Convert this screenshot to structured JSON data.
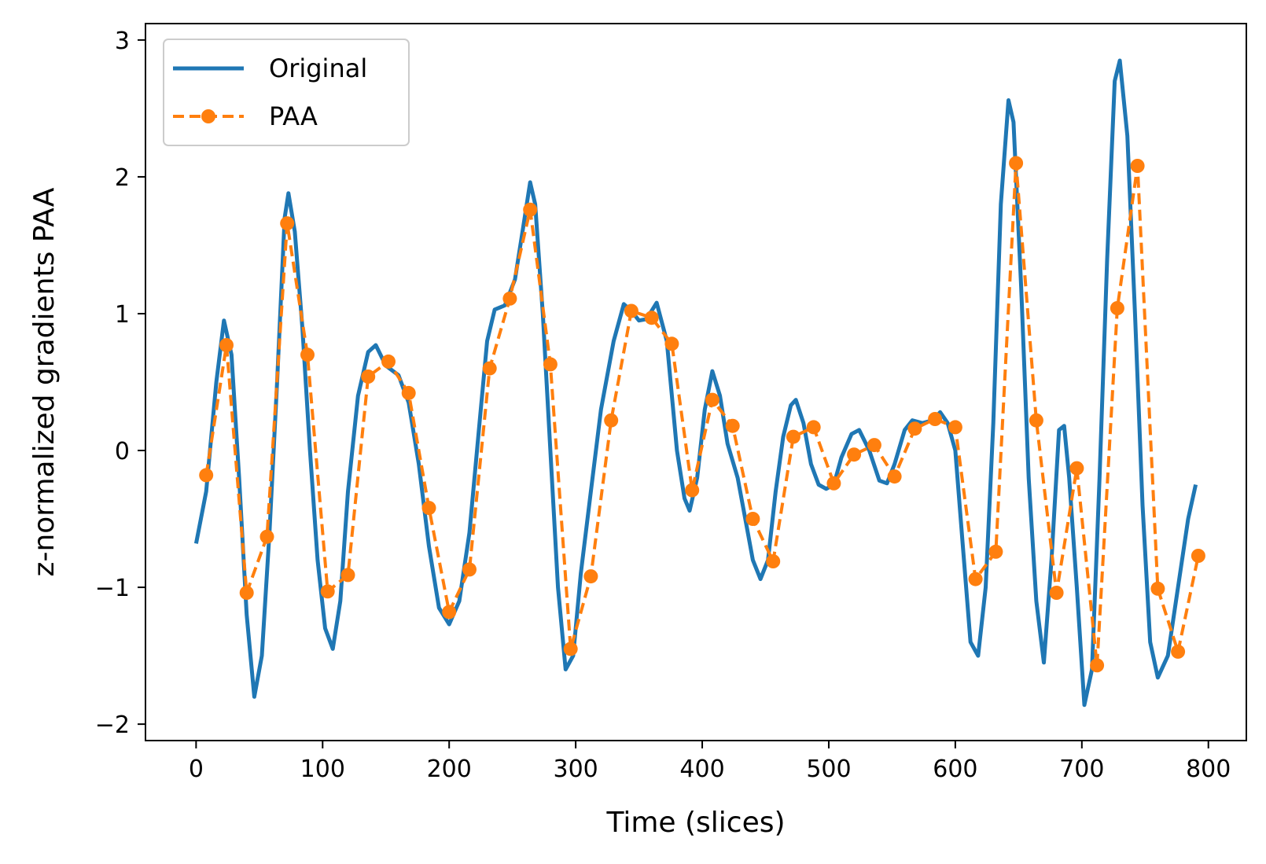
{
  "chart_data": {
    "type": "line",
    "title": "",
    "xlabel": "Time (slices)",
    "ylabel": "z-normalized gradients PAA",
    "xlim": [
      -40,
      830
    ],
    "ylim": [
      -2.12,
      3.12
    ],
    "x_ticks": [
      0,
      100,
      200,
      300,
      400,
      500,
      600,
      700,
      800
    ],
    "y_ticks": [
      3,
      2,
      1,
      0,
      -1,
      -2
    ],
    "y_tick_labels": [
      "3",
      "2",
      "1",
      "0",
      "−1",
      "−2"
    ],
    "grid": false,
    "legend_position": "top-left",
    "series": [
      {
        "name": "Original",
        "style": "solid",
        "color": "#1f77b4",
        "points": [
          [
            0,
            -0.68
          ],
          [
            8,
            -0.3
          ],
          [
            16,
            0.5
          ],
          [
            22,
            0.95
          ],
          [
            28,
            0.7
          ],
          [
            34,
            -0.2
          ],
          [
            40,
            -1.2
          ],
          [
            46,
            -1.8
          ],
          [
            52,
            -1.5
          ],
          [
            58,
            -0.6
          ],
          [
            64,
            0.5
          ],
          [
            70,
            1.7
          ],
          [
            73,
            1.88
          ],
          [
            78,
            1.6
          ],
          [
            84,
            0.9
          ],
          [
            90,
            0.0
          ],
          [
            96,
            -0.8
          ],
          [
            102,
            -1.3
          ],
          [
            108,
            -1.45
          ],
          [
            114,
            -1.1
          ],
          [
            120,
            -0.3
          ],
          [
            128,
            0.4
          ],
          [
            136,
            0.72
          ],
          [
            142,
            0.77
          ],
          [
            150,
            0.62
          ],
          [
            160,
            0.55
          ],
          [
            168,
            0.35
          ],
          [
            176,
            -0.1
          ],
          [
            184,
            -0.7
          ],
          [
            192,
            -1.15
          ],
          [
            200,
            -1.27
          ],
          [
            208,
            -1.1
          ],
          [
            216,
            -0.6
          ],
          [
            224,
            0.2
          ],
          [
            230,
            0.8
          ],
          [
            236,
            1.03
          ],
          [
            244,
            1.06
          ],
          [
            252,
            1.25
          ],
          [
            258,
            1.6
          ],
          [
            264,
            1.96
          ],
          [
            268,
            1.8
          ],
          [
            274,
            1.0
          ],
          [
            280,
            0.0
          ],
          [
            286,
            -1.0
          ],
          [
            292,
            -1.6
          ],
          [
            298,
            -1.5
          ],
          [
            304,
            -0.9
          ],
          [
            312,
            -0.3
          ],
          [
            320,
            0.3
          ],
          [
            330,
            0.8
          ],
          [
            338,
            1.07
          ],
          [
            344,
            1.02
          ],
          [
            350,
            0.95
          ],
          [
            356,
            0.96
          ],
          [
            364,
            1.08
          ],
          [
            372,
            0.8
          ],
          [
            380,
            0.0
          ],
          [
            386,
            -0.35
          ],
          [
            390,
            -0.44
          ],
          [
            396,
            -0.2
          ],
          [
            402,
            0.3
          ],
          [
            408,
            0.58
          ],
          [
            414,
            0.4
          ],
          [
            420,
            0.05
          ],
          [
            428,
            -0.2
          ],
          [
            434,
            -0.5
          ],
          [
            440,
            -0.8
          ],
          [
            446,
            -0.94
          ],
          [
            452,
            -0.8
          ],
          [
            458,
            -0.3
          ],
          [
            464,
            0.1
          ],
          [
            470,
            0.33
          ],
          [
            474,
            0.37
          ],
          [
            480,
            0.2
          ],
          [
            486,
            -0.1
          ],
          [
            492,
            -0.25
          ],
          [
            498,
            -0.28
          ],
          [
            504,
            -0.25
          ],
          [
            510,
            -0.05
          ],
          [
            518,
            0.12
          ],
          [
            524,
            0.15
          ],
          [
            532,
            0.0
          ],
          [
            540,
            -0.22
          ],
          [
            546,
            -0.24
          ],
          [
            552,
            -0.1
          ],
          [
            560,
            0.15
          ],
          [
            566,
            0.22
          ],
          [
            574,
            0.2
          ],
          [
            582,
            0.22
          ],
          [
            588,
            0.28
          ],
          [
            594,
            0.2
          ],
          [
            600,
            0.0
          ],
          [
            606,
            -0.7
          ],
          [
            612,
            -1.4
          ],
          [
            618,
            -1.5
          ],
          [
            624,
            -1.0
          ],
          [
            630,
            0.2
          ],
          [
            636,
            1.8
          ],
          [
            642,
            2.56
          ],
          [
            646,
            2.4
          ],
          [
            652,
            1.2
          ],
          [
            658,
            -0.2
          ],
          [
            664,
            -1.1
          ],
          [
            670,
            -1.55
          ],
          [
            676,
            -0.8
          ],
          [
            682,
            0.15
          ],
          [
            686,
            0.18
          ],
          [
            690,
            -0.2
          ],
          [
            696,
            -1.0
          ],
          [
            702,
            -1.86
          ],
          [
            708,
            -1.6
          ],
          [
            714,
            -0.2
          ],
          [
            720,
            1.4
          ],
          [
            726,
            2.7
          ],
          [
            730,
            2.85
          ],
          [
            736,
            2.3
          ],
          [
            742,
            1.0
          ],
          [
            748,
            -0.4
          ],
          [
            754,
            -1.4
          ],
          [
            760,
            -1.66
          ],
          [
            768,
            -1.5
          ],
          [
            776,
            -1.0
          ],
          [
            784,
            -0.5
          ],
          [
            790,
            -0.25
          ]
        ]
      },
      {
        "name": "PAA",
        "style": "dashed",
        "marker": "circle",
        "color": "#ff7f0e",
        "points": [
          [
            8,
            -0.18
          ],
          [
            24,
            0.77
          ],
          [
            40,
            -1.04
          ],
          [
            56,
            -0.63
          ],
          [
            72,
            1.66
          ],
          [
            88,
            0.7
          ],
          [
            104,
            -1.03
          ],
          [
            120,
            -0.91
          ],
          [
            136,
            0.54
          ],
          [
            152,
            0.65
          ],
          [
            168,
            0.42
          ],
          [
            184,
            -0.42
          ],
          [
            200,
            -1.18
          ],
          [
            216,
            -0.87
          ],
          [
            232,
            0.6
          ],
          [
            248,
            1.11
          ],
          [
            264,
            1.76
          ],
          [
            280,
            0.63
          ],
          [
            296,
            -1.45
          ],
          [
            312,
            -0.92
          ],
          [
            328,
            0.22
          ],
          [
            344,
            1.02
          ],
          [
            360,
            0.97
          ],
          [
            376,
            0.78
          ],
          [
            392,
            -0.29
          ],
          [
            408,
            0.37
          ],
          [
            424,
            0.18
          ],
          [
            440,
            -0.5
          ],
          [
            456,
            -0.81
          ],
          [
            472,
            0.1
          ],
          [
            488,
            0.17
          ],
          [
            504,
            -0.24
          ],
          [
            520,
            -0.03
          ],
          [
            536,
            0.04
          ],
          [
            552,
            -0.19
          ],
          [
            568,
            0.16
          ],
          [
            584,
            0.23
          ],
          [
            600,
            0.17
          ],
          [
            616,
            -0.94
          ],
          [
            632,
            -0.74
          ],
          [
            648,
            2.1
          ],
          [
            664,
            0.22
          ],
          [
            680,
            -1.04
          ],
          [
            696,
            -0.13
          ],
          [
            712,
            -1.57
          ],
          [
            728,
            1.04
          ],
          [
            744,
            2.08
          ],
          [
            760,
            -1.01
          ],
          [
            776,
            -1.47
          ],
          [
            792,
            -0.77
          ]
        ]
      }
    ]
  }
}
